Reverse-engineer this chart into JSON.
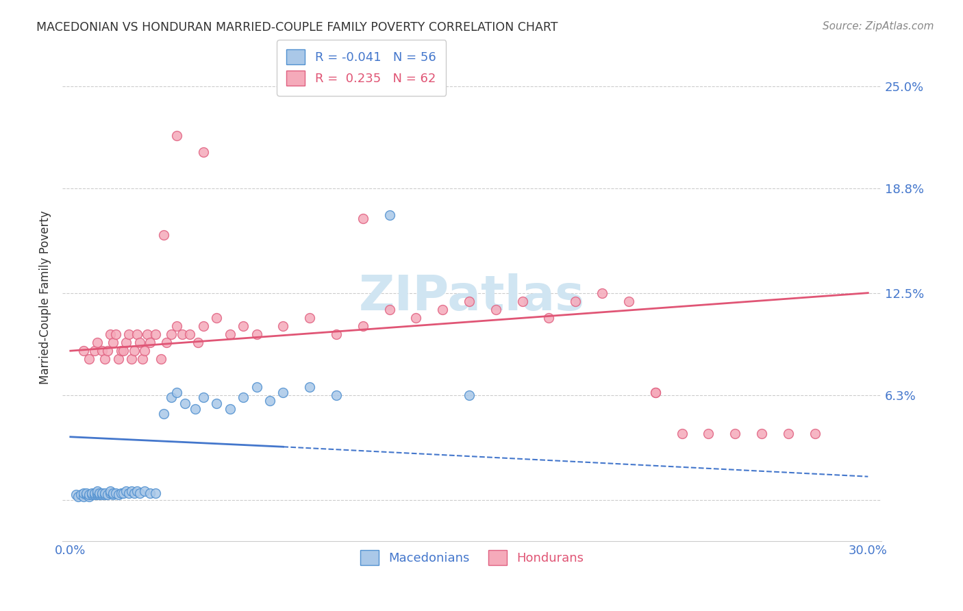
{
  "title": "MACEDONIAN VS HONDURAN MARRIED-COUPLE FAMILY POVERTY CORRELATION CHART",
  "source": "Source: ZipAtlas.com",
  "ylabel": "Married-Couple Family Poverty",
  "y_tick_vals": [
    0.0,
    0.063,
    0.125,
    0.188,
    0.25
  ],
  "y_tick_labels": [
    "",
    "6.3%",
    "12.5%",
    "18.8%",
    "25.0%"
  ],
  "x_range": [
    0.0,
    0.3
  ],
  "y_range": [
    -0.025,
    0.27
  ],
  "macedonian_color": "#aac8e8",
  "honduran_color": "#f5aaba",
  "macedonian_edge_color": "#5090d0",
  "honduran_edge_color": "#e06080",
  "macedonian_line_color": "#4477cc",
  "honduran_line_color": "#e05575",
  "watermark_color": "#d0e5f2",
  "marker_size": 100,
  "macedonian_x": [
    0.002,
    0.003,
    0.004,
    0.005,
    0.005,
    0.006,
    0.006,
    0.007,
    0.007,
    0.008,
    0.008,
    0.009,
    0.009,
    0.01,
    0.01,
    0.01,
    0.011,
    0.011,
    0.012,
    0.012,
    0.013,
    0.013,
    0.014,
    0.015,
    0.015,
    0.016,
    0.016,
    0.017,
    0.018,
    0.019,
    0.02,
    0.021,
    0.022,
    0.023,
    0.024,
    0.025,
    0.026,
    0.028,
    0.03,
    0.032,
    0.035,
    0.038,
    0.04,
    0.043,
    0.047,
    0.05,
    0.055,
    0.06,
    0.065,
    0.07,
    0.075,
    0.08,
    0.09,
    0.1,
    0.12,
    0.15
  ],
  "macedonian_y": [
    0.003,
    0.002,
    0.003,
    0.002,
    0.004,
    0.003,
    0.004,
    0.002,
    0.003,
    0.003,
    0.004,
    0.003,
    0.004,
    0.003,
    0.004,
    0.005,
    0.003,
    0.004,
    0.003,
    0.004,
    0.003,
    0.004,
    0.003,
    0.004,
    0.005,
    0.003,
    0.004,
    0.004,
    0.003,
    0.004,
    0.004,
    0.005,
    0.004,
    0.005,
    0.004,
    0.005,
    0.004,
    0.005,
    0.004,
    0.004,
    0.052,
    0.062,
    0.065,
    0.058,
    0.055,
    0.062,
    0.058,
    0.055,
    0.062,
    0.068,
    0.06,
    0.065,
    0.068,
    0.063,
    0.172,
    0.063
  ],
  "honduran_x": [
    0.005,
    0.007,
    0.009,
    0.01,
    0.012,
    0.013,
    0.014,
    0.015,
    0.016,
    0.017,
    0.018,
    0.019,
    0.02,
    0.021,
    0.022,
    0.023,
    0.024,
    0.025,
    0.026,
    0.027,
    0.028,
    0.029,
    0.03,
    0.032,
    0.034,
    0.036,
    0.038,
    0.04,
    0.042,
    0.045,
    0.048,
    0.05,
    0.055,
    0.06,
    0.065,
    0.07,
    0.08,
    0.09,
    0.1,
    0.11,
    0.12,
    0.13,
    0.14,
    0.15,
    0.16,
    0.17,
    0.18,
    0.19,
    0.2,
    0.21,
    0.22,
    0.23,
    0.24,
    0.25,
    0.26,
    0.27,
    0.28,
    0.035,
    0.04,
    0.05,
    0.11,
    0.22
  ],
  "honduran_y": [
    0.09,
    0.085,
    0.09,
    0.095,
    0.09,
    0.085,
    0.09,
    0.1,
    0.095,
    0.1,
    0.085,
    0.09,
    0.09,
    0.095,
    0.1,
    0.085,
    0.09,
    0.1,
    0.095,
    0.085,
    0.09,
    0.1,
    0.095,
    0.1,
    0.085,
    0.095,
    0.1,
    0.105,
    0.1,
    0.1,
    0.095,
    0.105,
    0.11,
    0.1,
    0.105,
    0.1,
    0.105,
    0.11,
    0.1,
    0.105,
    0.115,
    0.11,
    0.115,
    0.12,
    0.115,
    0.12,
    0.11,
    0.12,
    0.125,
    0.12,
    0.065,
    0.04,
    0.04,
    0.04,
    0.04,
    0.04,
    0.04,
    0.16,
    0.22,
    0.21,
    0.17,
    0.065
  ],
  "hon_line_x0": 0.0,
  "hon_line_y0": 0.09,
  "hon_line_x1": 0.3,
  "hon_line_y1": 0.125,
  "mac_line_solid_x0": 0.0,
  "mac_line_solid_y0": 0.038,
  "mac_line_solid_x1": 0.08,
  "mac_line_solid_y1": 0.032,
  "mac_line_dash_x0": 0.08,
  "mac_line_dash_y0": 0.032,
  "mac_line_dash_x1": 0.3,
  "mac_line_dash_y1": 0.014
}
